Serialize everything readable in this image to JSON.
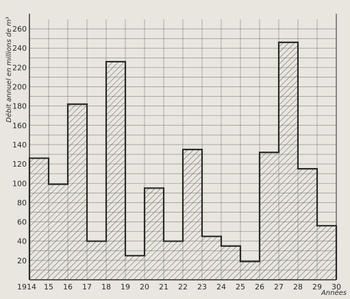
{
  "chart_data": {
    "type": "bar",
    "style": "step-histogram, hatched",
    "ylabel": "Débit annuel en millions de m³",
    "xlabel": "Années",
    "categories": [
      "1914",
      "15",
      "16",
      "17",
      "18",
      "19",
      "20",
      "21",
      "22",
      "23",
      "24",
      "25",
      "26",
      "27",
      "28",
      "29"
    ],
    "end_tick": "30",
    "values": [
      126,
      99,
      182,
      40,
      226,
      25,
      95,
      40,
      135,
      45,
      35,
      19,
      132,
      246,
      115,
      56
    ],
    "ylim": [
      0,
      270
    ],
    "yticks": [
      20,
      40,
      60,
      80,
      100,
      120,
      140,
      160,
      180,
      200,
      220,
      240,
      260
    ],
    "grid": true,
    "colors": {
      "ink": "#2a2a2a",
      "grid": "#555555",
      "hatch": "#555555",
      "paper": "#e9e6df"
    }
  }
}
